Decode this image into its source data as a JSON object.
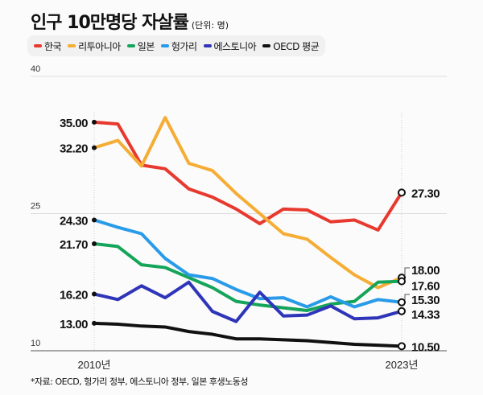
{
  "title": "인구 10만명당 자살률",
  "unit": "(단위: 명)",
  "footnote": "*자료: OECD, 헝가리 정부, 에스토니아 정부, 일본 후생노동성",
  "chart_data": {
    "type": "line",
    "x": [
      2010,
      2011,
      2012,
      2013,
      2014,
      2015,
      2016,
      2017,
      2018,
      2019,
      2020,
      2021,
      2022,
      2023
    ],
    "x_tick_labels": [
      "2010년",
      "2023년"
    ],
    "y_tick_labels": [
      "40",
      "25",
      "10"
    ],
    "yticks": [
      40,
      25,
      10
    ],
    "ylim": [
      10,
      40
    ],
    "grid": "horizontal",
    "legend": "top",
    "series": [
      {
        "name": "한국",
        "color": "#e8392f",
        "values": [
          35.0,
          34.8,
          30.3,
          29.9,
          27.7,
          26.8,
          25.5,
          23.9,
          25.5,
          25.4,
          24.1,
          24.3,
          23.2,
          27.3
        ],
        "start_label": "35.00",
        "end_label": "27.30"
      },
      {
        "name": "리투아니아",
        "color": "#f5ad35",
        "values": [
          32.2,
          33.0,
          30.2,
          35.5,
          30.5,
          29.7,
          27.2,
          25.0,
          22.8,
          22.2,
          20.2,
          18.3,
          16.9,
          18.0
        ],
        "start_label": "32.20",
        "end_label": "18.00"
      },
      {
        "name": "일본",
        "color": "#14a45a",
        "values": [
          21.7,
          21.4,
          19.4,
          19.1,
          18.0,
          16.9,
          15.4,
          15.0,
          14.7,
          14.4,
          15.1,
          15.4,
          17.5,
          17.6
        ],
        "start_label": "21.70",
        "end_label": "17.60"
      },
      {
        "name": "헝가리",
        "color": "#2a9be8",
        "values": [
          24.3,
          23.5,
          22.8,
          20.1,
          18.3,
          17.9,
          16.7,
          15.7,
          15.8,
          14.8,
          15.9,
          14.8,
          15.6,
          15.3
        ],
        "start_label": "24.30",
        "end_label": "15.30"
      },
      {
        "name": "에스토니아",
        "color": "#2f35b8",
        "values": [
          16.2,
          15.6,
          17.1,
          15.8,
          17.5,
          14.3,
          13.2,
          16.4,
          13.8,
          13.9,
          14.9,
          13.5,
          13.6,
          14.33
        ],
        "start_label": "16.20",
        "end_label": "14.33"
      },
      {
        "name": "OECD 평균",
        "color": "#111111",
        "values": [
          13.0,
          12.9,
          12.7,
          12.6,
          12.1,
          11.8,
          11.3,
          11.3,
          11.2,
          11.1,
          10.9,
          10.7,
          10.6,
          10.5
        ],
        "start_label": "13.00",
        "end_label": "10.50"
      }
    ]
  }
}
